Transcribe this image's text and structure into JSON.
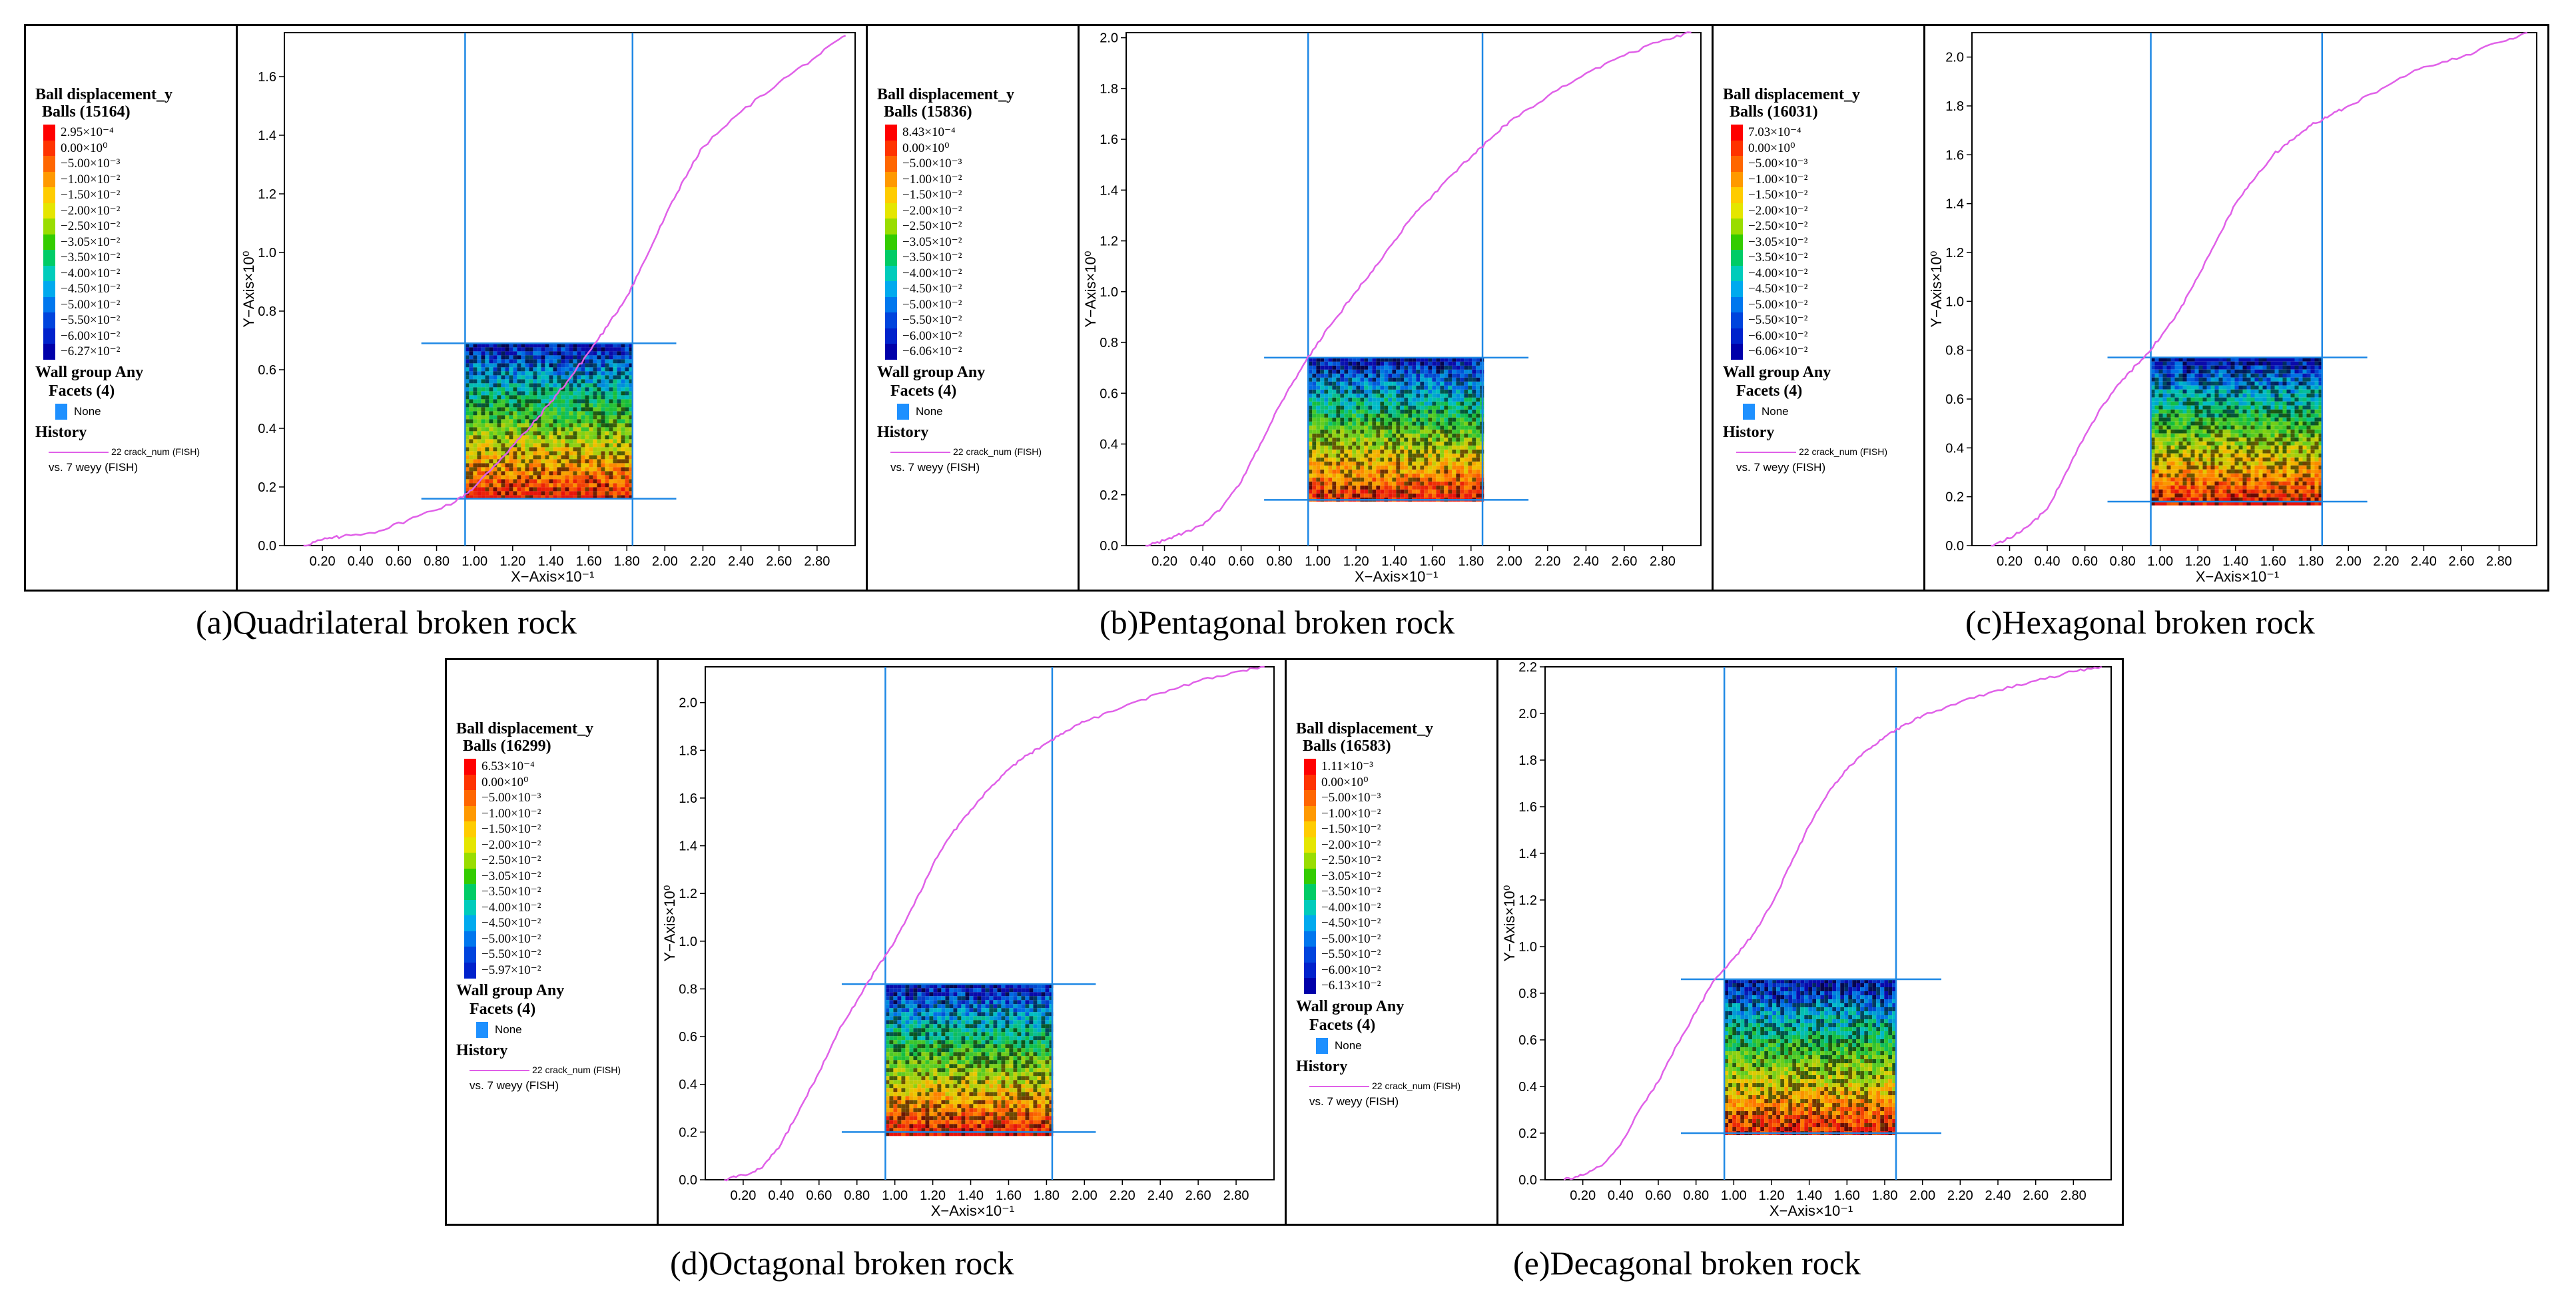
{
  "panels": [
    {
      "caption": "(a)Quadrilateral broken rock",
      "legend": {
        "title": "Ball displacement_y",
        "balls": "Balls (15164)",
        "entries": [
          "2.95×10⁻⁴",
          "0.00×10⁰",
          "−5.00×10⁻³",
          "−1.00×10⁻²",
          "−1.50×10⁻²",
          "−2.00×10⁻²",
          "−2.50×10⁻²",
          "−3.05×10⁻²",
          "−3.50×10⁻²",
          "−4.00×10⁻²",
          "−4.50×10⁻²",
          "−5.00×10⁻²",
          "−5.50×10⁻²",
          "−6.00×10⁻²",
          "−6.27×10⁻²"
        ],
        "wall": "Wall group Any",
        "facets": "Facets (4)",
        "facet_value": "None",
        "history": "History",
        "hist1": "22 crack_num (FISH)",
        "hist2": "vs. 7 weyy (FISH)"
      }
    },
    {
      "caption": "(b)Pentagonal broken rock",
      "legend": {
        "title": "Ball displacement_y",
        "balls": "Balls (15836)",
        "entries": [
          "8.43×10⁻⁴",
          "0.00×10⁰",
          "−5.00×10⁻³",
          "−1.00×10⁻²",
          "−1.50×10⁻²",
          "−2.00×10⁻²",
          "−2.50×10⁻²",
          "−3.05×10⁻²",
          "−3.50×10⁻²",
          "−4.00×10⁻²",
          "−4.50×10⁻²",
          "−5.00×10⁻²",
          "−5.50×10⁻²",
          "−6.00×10⁻²",
          "−6.06×10⁻²"
        ],
        "wall": "Wall group Any",
        "facets": "Facets (4)",
        "facet_value": "None",
        "history": "History",
        "hist1": "22 crack_num (FISH)",
        "hist2": "vs. 7 weyy (FISH)"
      }
    },
    {
      "caption": "(c)Hexagonal broken rock",
      "legend": {
        "title": "Ball displacement_y",
        "balls": "Balls (16031)",
        "entries": [
          "7.03×10⁻⁴",
          "0.00×10⁰",
          "−5.00×10⁻³",
          "−1.00×10⁻²",
          "−1.50×10⁻²",
          "−2.00×10⁻²",
          "−2.50×10⁻²",
          "−3.05×10⁻²",
          "−3.50×10⁻²",
          "−4.00×10⁻²",
          "−4.50×10⁻²",
          "−5.00×10⁻²",
          "−5.50×10⁻²",
          "−6.00×10⁻²",
          "−6.06×10⁻²"
        ],
        "wall": "Wall group Any",
        "facets": "Facets (4)",
        "facet_value": "None",
        "history": "History",
        "hist1": "22 crack_num (FISH)",
        "hist2": "vs. 7 weyy (FISH)"
      }
    },
    {
      "caption": "(d)Octagonal broken rock",
      "legend": {
        "title": "Ball displacement_y",
        "balls": "Balls (16299)",
        "entries": [
          "6.53×10⁻⁴",
          "0.00×10⁰",
          "−5.00×10⁻³",
          "−1.00×10⁻²",
          "−1.50×10⁻²",
          "−2.00×10⁻²",
          "−2.50×10⁻²",
          "−3.05×10⁻²",
          "−3.50×10⁻²",
          "−4.00×10⁻²",
          "−4.50×10⁻²",
          "−5.00×10⁻²",
          "−5.50×10⁻²",
          "−5.97×10⁻²"
        ],
        "wall": "Wall group Any",
        "facets": "Facets (4)",
        "facet_value": "None",
        "history": "History",
        "hist1": "22 crack_num (FISH)",
        "hist2": "vs. 7 weyy (FISH)"
      }
    },
    {
      "caption": "(e)Decagonal broken rock",
      "legend": {
        "title": "Ball displacement_y",
        "balls": "Balls (16583)",
        "entries": [
          "1.11×10⁻³",
          "0.00×10⁰",
          "−5.00×10⁻³",
          "−1.00×10⁻²",
          "−1.50×10⁻²",
          "−2.00×10⁻²",
          "−2.50×10⁻²",
          "−3.05×10⁻²",
          "−3.50×10⁻²",
          "−4.00×10⁻²",
          "−4.50×10⁻²",
          "−5.00×10⁻²",
          "−5.50×10⁻²",
          "−6.00×10⁻²",
          "−6.13×10⁻²"
        ],
        "wall": "Wall group Any",
        "facets": "Facets (4)",
        "facet_value": "None",
        "history": "History",
        "hist1": "22 crack_num (FISH)",
        "hist2": "vs. 7 weyy (FISH)"
      }
    }
  ],
  "legend_colors": [
    "#ff0000",
    "#ff3300",
    "#ff6600",
    "#ff9900",
    "#ffcc00",
    "#e5e600",
    "#99dd00",
    "#33cc00",
    "#00cc66",
    "#00ccbb",
    "#00aaee",
    "#0077ee",
    "#0044dd",
    "#0022cc",
    "#0000aa"
  ],
  "chart_data": [
    {
      "type": "line",
      "xlabel": "X−Axis×10⁻¹",
      "ylabel": "Y−Axis×10⁰",
      "xlim": [
        0,
        3.0
      ],
      "ylim": [
        0,
        1.75
      ],
      "xticks": [
        "0.20",
        "0.40",
        "0.60",
        "0.80",
        "1.00",
        "1.20",
        "1.40",
        "1.60",
        "1.80",
        "2.00",
        "2.20",
        "2.40",
        "2.60",
        "2.80"
      ],
      "yticks": [
        "0.0",
        "0.2",
        "0.4",
        "0.6",
        "0.8",
        "1.0",
        "1.2",
        "1.4",
        "1.6"
      ],
      "series": [
        {
          "x": [
            0.1,
            0.2,
            0.3,
            0.5,
            0.7,
            0.9,
            1.0,
            1.1,
            1.2,
            1.3,
            1.4,
            1.5,
            1.6,
            1.7,
            1.8,
            1.9,
            2.0,
            2.1,
            2.2,
            2.4,
            2.6,
            2.8,
            2.95
          ],
          "y": [
            0.0,
            0.02,
            0.03,
            0.05,
            0.1,
            0.15,
            0.2,
            0.27,
            0.34,
            0.41,
            0.49,
            0.57,
            0.66,
            0.75,
            0.85,
            0.98,
            1.12,
            1.25,
            1.36,
            1.48,
            1.58,
            1.67,
            1.74
          ]
        }
      ],
      "vlines": [
        0.95,
        1.83
      ],
      "box_x": [
        0.95,
        1.83
      ],
      "box_y": [
        0.16,
        0.69
      ],
      "hline_x": [
        0.72,
        2.06
      ]
    },
    {
      "type": "line",
      "xlabel": "X−Axis×10⁻¹",
      "ylabel": "Y−Axis×10⁰",
      "xlim": [
        0,
        3.0
      ],
      "ylim": [
        0,
        2.02
      ],
      "xticks": [
        "0.20",
        "0.40",
        "0.60",
        "0.80",
        "1.00",
        "1.20",
        "1.40",
        "1.60",
        "1.80",
        "2.00",
        "2.20",
        "2.40",
        "2.60",
        "2.80"
      ],
      "yticks": [
        "0.0",
        "0.2",
        "0.4",
        "0.6",
        "0.8",
        "1.0",
        "1.2",
        "1.4",
        "1.6",
        "1.8",
        "2.0"
      ],
      "series": [
        {
          "x": [
            0.1,
            0.2,
            0.3,
            0.4,
            0.5,
            0.6,
            0.7,
            0.8,
            0.9,
            1.0,
            1.1,
            1.2,
            1.3,
            1.4,
            1.5,
            1.6,
            1.7,
            1.8,
            1.9,
            2.0,
            2.2,
            2.4,
            2.6,
            2.8,
            2.95
          ],
          "y": [
            0.0,
            0.02,
            0.05,
            0.08,
            0.15,
            0.25,
            0.4,
            0.55,
            0.68,
            0.8,
            0.9,
            1.0,
            1.1,
            1.2,
            1.3,
            1.38,
            1.46,
            1.53,
            1.6,
            1.67,
            1.77,
            1.86,
            1.93,
            1.99,
            2.02
          ]
        }
      ],
      "vlines": [
        0.95,
        1.86
      ],
      "box_x": [
        0.95,
        1.86
      ],
      "box_y": [
        0.18,
        0.74
      ],
      "hline_x": [
        0.72,
        2.1
      ]
    },
    {
      "type": "line",
      "xlabel": "X−Axis×10⁻¹",
      "ylabel": "Y−Axis×10⁰",
      "xlim": [
        0,
        3.0
      ],
      "ylim": [
        0,
        2.1
      ],
      "xticks": [
        "0.20",
        "0.40",
        "0.60",
        "0.80",
        "1.00",
        "1.20",
        "1.40",
        "1.60",
        "1.80",
        "2.00",
        "2.20",
        "2.40",
        "2.60",
        "2.80"
      ],
      "yticks": [
        "0.0",
        "0.2",
        "0.4",
        "0.6",
        "0.8",
        "1.0",
        "1.2",
        "1.4",
        "1.6",
        "1.8",
        "2.0"
      ],
      "series": [
        {
          "x": [
            0.1,
            0.2,
            0.3,
            0.4,
            0.5,
            0.6,
            0.7,
            0.8,
            0.9,
            1.0,
            1.1,
            1.2,
            1.3,
            1.4,
            1.5,
            1.6,
            1.7,
            1.8,
            1.9,
            2.0,
            2.2,
            2.4,
            2.6,
            2.8,
            2.95
          ],
          "y": [
            0.0,
            0.03,
            0.08,
            0.15,
            0.3,
            0.45,
            0.58,
            0.68,
            0.76,
            0.85,
            0.96,
            1.1,
            1.25,
            1.4,
            1.5,
            1.6,
            1.66,
            1.72,
            1.76,
            1.8,
            1.88,
            1.96,
            2.0,
            2.06,
            2.1
          ]
        }
      ],
      "vlines": [
        0.95,
        1.86
      ],
      "box_x": [
        0.95,
        1.86
      ],
      "box_y": [
        0.18,
        0.77
      ],
      "hline_x": [
        0.72,
        2.1
      ]
    },
    {
      "type": "line",
      "xlabel": "X−Axis×10⁻¹",
      "ylabel": "Y−Axis×10⁰",
      "xlim": [
        0,
        3.0
      ],
      "ylim": [
        0,
        2.15
      ],
      "xticks": [
        "0.20",
        "0.40",
        "0.60",
        "0.80",
        "1.00",
        "1.20",
        "1.40",
        "1.60",
        "1.80",
        "2.00",
        "2.20",
        "2.40",
        "2.60",
        "2.80"
      ],
      "yticks": [
        "0.0",
        "0.2",
        "0.4",
        "0.6",
        "0.8",
        "1.0",
        "1.2",
        "1.4",
        "1.6",
        "1.8",
        "2.0"
      ],
      "series": [
        {
          "x": [
            0.1,
            0.2,
            0.3,
            0.4,
            0.5,
            0.6,
            0.7,
            0.8,
            0.9,
            1.0,
            1.1,
            1.2,
            1.3,
            1.4,
            1.5,
            1.6,
            1.7,
            1.8,
            1.9,
            2.0,
            2.2,
            2.4,
            2.6,
            2.8,
            2.95
          ],
          "y": [
            0.0,
            0.02,
            0.05,
            0.15,
            0.3,
            0.45,
            0.62,
            0.75,
            0.88,
            1.0,
            1.15,
            1.32,
            1.45,
            1.55,
            1.64,
            1.72,
            1.78,
            1.83,
            1.88,
            1.92,
            1.98,
            2.04,
            2.09,
            2.13,
            2.15
          ]
        }
      ],
      "vlines": [
        0.95,
        1.83
      ],
      "box_x": [
        0.95,
        1.83
      ],
      "box_y": [
        0.2,
        0.82
      ],
      "hline_x": [
        0.72,
        2.06
      ]
    },
    {
      "type": "line",
      "xlabel": "X−Axis×10⁻¹",
      "ylabel": "Y−Axis×10⁰",
      "xlim": [
        0,
        3.0
      ],
      "ylim": [
        0,
        2.2
      ],
      "xticks": [
        "0.20",
        "0.40",
        "0.60",
        "0.80",
        "1.00",
        "1.20",
        "1.40",
        "1.60",
        "1.80",
        "2.00",
        "2.20",
        "2.40",
        "2.60",
        "2.80"
      ],
      "yticks": [
        "0.0",
        "0.2",
        "0.4",
        "0.6",
        "0.8",
        "1.0",
        "1.2",
        "1.4",
        "1.6",
        "1.8",
        "2.0",
        "2.2"
      ],
      "series": [
        {
          "x": [
            0.1,
            0.2,
            0.3,
            0.4,
            0.5,
            0.6,
            0.7,
            0.8,
            0.9,
            1.0,
            1.1,
            1.2,
            1.3,
            1.4,
            1.5,
            1.6,
            1.7,
            1.8,
            1.9,
            2.0,
            2.2,
            2.4,
            2.6,
            2.8,
            2.95
          ],
          "y": [
            0.0,
            0.02,
            0.06,
            0.15,
            0.3,
            0.42,
            0.58,
            0.72,
            0.86,
            0.95,
            1.05,
            1.18,
            1.35,
            1.52,
            1.66,
            1.76,
            1.84,
            1.9,
            1.95,
            1.99,
            2.05,
            2.1,
            2.14,
            2.18,
            2.2
          ]
        }
      ],
      "vlines": [
        0.95,
        1.86
      ],
      "box_x": [
        0.95,
        1.86
      ],
      "box_y": [
        0.2,
        0.86
      ],
      "hline_x": [
        0.72,
        2.1
      ]
    }
  ]
}
